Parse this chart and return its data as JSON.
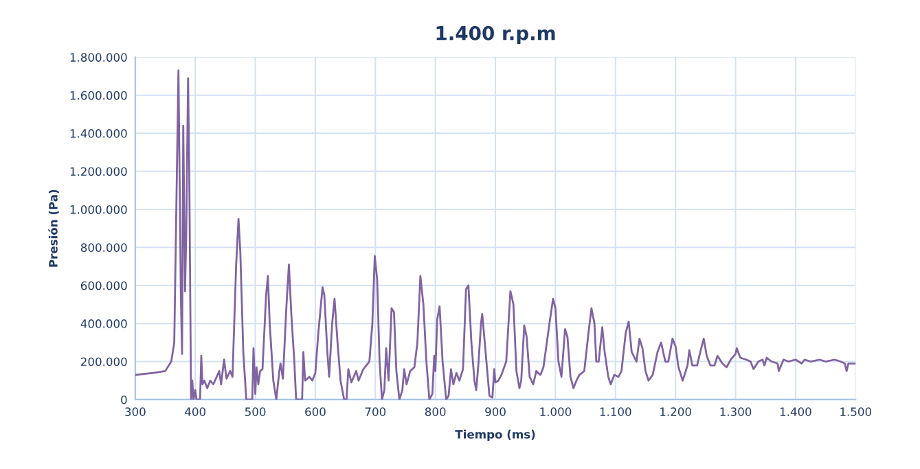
{
  "chart_data": {
    "type": "line",
    "title": "1.400 r.p.m",
    "xlabel": "Tiempo (ms)",
    "ylabel": "Presión (Pa)",
    "xlim": [
      300,
      1500
    ],
    "ylim": [
      0,
      1800000
    ],
    "xticks": [
      {
        "value": 300,
        "label": "300"
      },
      {
        "value": 400,
        "label": "400"
      },
      {
        "value": 500,
        "label": "500"
      },
      {
        "value": 600,
        "label": "600"
      },
      {
        "value": 700,
        "label": "700"
      },
      {
        "value": 800,
        "label": "800"
      },
      {
        "value": 900,
        "label": "900"
      },
      {
        "value": 1000,
        "label": "1.000"
      },
      {
        "value": 1100,
        "label": "1.100"
      },
      {
        "value": 1200,
        "label": "1.200"
      },
      {
        "value": 1300,
        "label": "1.300"
      },
      {
        "value": 1400,
        "label": "1.400"
      },
      {
        "value": 1500,
        "label": "1.500"
      }
    ],
    "yticks": [
      {
        "value": 0,
        "label": "0"
      },
      {
        "value": 200000,
        "label": "200.000"
      },
      {
        "value": 400000,
        "label": "400.000"
      },
      {
        "value": 600000,
        "label": "600.000"
      },
      {
        "value": 800000,
        "label": "800.000"
      },
      {
        "value": 1000000,
        "label": "1.000.000"
      },
      {
        "value": 1200000,
        "label": "1.200.000"
      },
      {
        "value": 1400000,
        "label": "1.400.000"
      },
      {
        "value": 1600000,
        "label": "1.600.000"
      },
      {
        "value": 1800000,
        "label": "1.800.000"
      }
    ],
    "grid": true,
    "marker": "none",
    "line_style": "solid",
    "series": [
      {
        "color": "#8064a2",
        "x": [
          300,
          330,
          350,
          360,
          365,
          372,
          376,
          378,
          380,
          383,
          385,
          388,
          390,
          393,
          395,
          397,
          400,
          402,
          408,
          410,
          412,
          415,
          420,
          425,
          430,
          440,
          443,
          448,
          452,
          458,
          462,
          468,
          472,
          475,
          480,
          485,
          490,
          495,
          497,
          500,
          502,
          505,
          508,
          512,
          518,
          521,
          524,
          527,
          530,
          535,
          540,
          542,
          546,
          552,
          556,
          560,
          565,
          568,
          578,
          580,
          583,
          590,
          595,
          600,
          605,
          612,
          615,
          620,
          623,
          628,
          632,
          637,
          642,
          648,
          652,
          655,
          660,
          668,
          672,
          680,
          690,
          695,
          699,
          703,
          707,
          711,
          715,
          718,
          722,
          727,
          731,
          735,
          740,
          745,
          748,
          752,
          758,
          765,
          770,
          775,
          780,
          785,
          790,
          795,
          798,
          800,
          803,
          807,
          812,
          818,
          822,
          826,
          830,
          835,
          840,
          846,
          851,
          855,
          860,
          865,
          868,
          872,
          876,
          878,
          880,
          885,
          890,
          895,
          898,
          900,
          905,
          910,
          918,
          925,
          930,
          935,
          940,
          943,
          948,
          952,
          957,
          963,
          968,
          975,
          980,
          990,
          996,
          1000,
          1005,
          1010,
          1016,
          1020,
          1025,
          1030,
          1035,
          1040,
          1048,
          1055,
          1060,
          1065,
          1068,
          1072,
          1078,
          1082,
          1088,
          1092,
          1098,
          1105,
          1110,
          1117,
          1122,
          1127,
          1135,
          1140,
          1145,
          1150,
          1155,
          1162,
          1170,
          1176,
          1183,
          1188,
          1195,
          1200,
          1205,
          1212,
          1220,
          1223,
          1228,
          1236,
          1242,
          1247,
          1252,
          1258,
          1265,
          1270,
          1278,
          1285,
          1292,
          1300,
          1302,
          1308,
          1318,
          1325,
          1330,
          1338,
          1345,
          1348,
          1352,
          1360,
          1370,
          1372,
          1380,
          1388,
          1400,
          1410,
          1415,
          1425,
          1440,
          1450,
          1465,
          1475,
          1482,
          1485,
          1488,
          1500
        ],
        "values": [
          130000,
          140000,
          150000,
          200000,
          300000,
          1730000,
          550000,
          240000,
          1440000,
          570000,
          880000,
          1690000,
          1200000,
          0,
          100000,
          0,
          50000,
          0,
          0,
          230000,
          80000,
          100000,
          60000,
          100000,
          80000,
          150000,
          80000,
          210000,
          110000,
          150000,
          120000,
          700000,
          950000,
          780000,
          250000,
          0,
          0,
          0,
          270000,
          30000,
          170000,
          80000,
          150000,
          160000,
          550000,
          650000,
          400000,
          250000,
          100000,
          0,
          150000,
          190000,
          110000,
          500000,
          710000,
          450000,
          200000,
          0,
          0,
          250000,
          100000,
          120000,
          100000,
          140000,
          350000,
          590000,
          550000,
          250000,
          120000,
          400000,
          530000,
          300000,
          100000,
          0,
          0,
          160000,
          90000,
          150000,
          100000,
          160000,
          200000,
          400000,
          755000,
          630000,
          200000,
          0,
          50000,
          270000,
          100000,
          480000,
          460000,
          150000,
          0,
          50000,
          160000,
          80000,
          150000,
          170000,
          300000,
          650000,
          500000,
          200000,
          0,
          30000,
          230000,
          150000,
          420000,
          490000,
          200000,
          0,
          20000,
          160000,
          80000,
          140000,
          100000,
          160000,
          580000,
          600000,
          300000,
          100000,
          50000,
          200000,
          400000,
          450000,
          380000,
          200000,
          20000,
          10000,
          160000,
          90000,
          100000,
          130000,
          200000,
          570000,
          500000,
          150000,
          60000,
          100000,
          390000,
          330000,
          120000,
          80000,
          150000,
          130000,
          170000,
          400000,
          530000,
          480000,
          200000,
          120000,
          370000,
          330000,
          120000,
          60000,
          100000,
          130000,
          150000,
          350000,
          480000,
          400000,
          200000,
          200000,
          380000,
          250000,
          120000,
          80000,
          130000,
          120000,
          150000,
          350000,
          410000,
          250000,
          200000,
          320000,
          270000,
          150000,
          100000,
          130000,
          250000,
          300000,
          200000,
          200000,
          320000,
          280000,
          170000,
          100000,
          180000,
          260000,
          180000,
          180000,
          260000,
          320000,
          230000,
          180000,
          180000,
          230000,
          190000,
          170000,
          210000,
          240000,
          270000,
          220000,
          210000,
          200000,
          160000,
          200000,
          210000,
          180000,
          220000,
          200000,
          190000,
          150000,
          210000,
          200000,
          210000,
          190000,
          210000,
          200000,
          210000,
          200000,
          210000,
          200000,
          190000,
          150000,
          190000,
          190000
        ]
      }
    ]
  }
}
